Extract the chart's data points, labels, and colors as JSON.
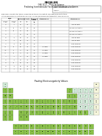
{
  "title": "PROBLEM",
  "subtitle1": "CHE 111.1 - Physical Science",
  "subtitle2": "Predicting Intermolecular Forces and Intermolecular Forces",
  "date_label": "Date: September 11, 2023",
  "name_label": "Name: __________",
  "line1": "DIRECTION: Complete the table by computing for the electronegativity, and identifying what is there",
  "line2": "intermolecular force, and intramolecular force. You can use Pauling's Electronegativity Table as a guide.",
  "table_rows": [
    [
      "H",
      "F",
      "2.1",
      "4.0",
      "1.9"
    ],
    [
      "H",
      "Cl",
      "2.1",
      "3.0",
      "0.9"
    ],
    [
      "H",
      "Br",
      "2.1",
      "2.8",
      "0.7"
    ],
    [
      "H",
      "I",
      "2.1",
      "2.5",
      "0.4"
    ],
    [
      "N",
      "H",
      "3.0",
      "2.1",
      "0.9"
    ],
    [
      "O",
      "H",
      "3.5",
      "2.1",
      "1.4"
    ],
    [
      "C",
      "H",
      "2.5",
      "2.1",
      "0.4"
    ],
    [
      "Na",
      "Cl",
      "0.9",
      "3.0",
      "2.1"
    ],
    [
      "Mg",
      "O",
      "1.2",
      "3.5",
      "2.3"
    ],
    [
      "Ca",
      "Cl",
      "1.0",
      "3.0",
      "2.0"
    ],
    [
      "Li",
      "F",
      "1.0",
      "4.0",
      "3.0"
    ],
    [
      "H",
      "H",
      "2.1",
      "2.1",
      "0.0"
    ],
    [
      "Cl",
      "Cl",
      "3.0",
      "3.0",
      "0.0"
    ],
    [
      "N",
      "N",
      "3.0",
      "3.0",
      "0.0"
    ],
    [
      "F",
      "F",
      "4.0",
      "4.0",
      "0.0"
    ]
  ],
  "intramolecular_notes": [
    "",
    "",
    "",
    "",
    "",
    "",
    "",
    "Ionic Bond",
    "Ionic Bond",
    "Ionic Bond",
    "Ionic Bond",
    "",
    "",
    "",
    ""
  ],
  "intermolecular_notes": [
    "Hydrogen Bond",
    "Dipole-Dipole Interaction",
    "Dipole-Dipole Interaction",
    "Dipole-Dipole Interaction",
    "Hydrogen Bond",
    "Hydrogen Bond",
    "London Dispersion",
    "London Dispersion",
    "London Dispersion",
    "London Dispersion",
    "London Dispersion",
    "London Dispersion",
    "London Dispersion",
    "London Dispersion",
    "London Dispersion"
  ],
  "periodic_table_title": "Pauling Electronegativity Values",
  "bg_color": "#ffffff"
}
